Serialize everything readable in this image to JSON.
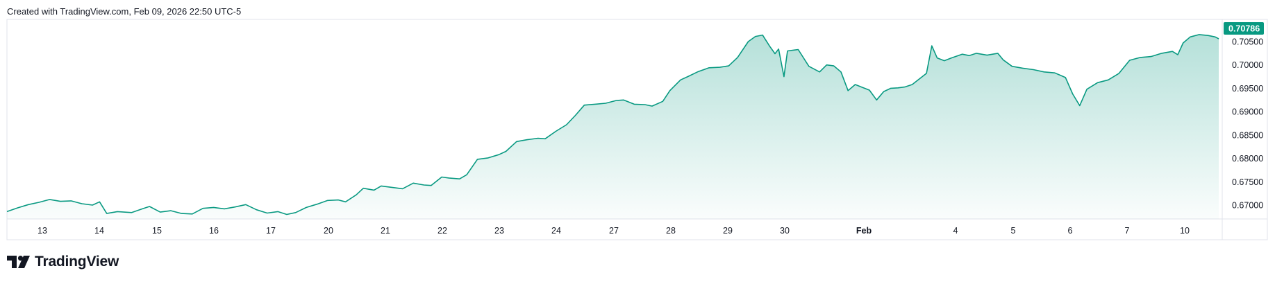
{
  "header": {
    "created_text": "Created with TradingView.com, Feb 09, 2026 22:50 UTC-5"
  },
  "branding": {
    "logo_text": "TradingView",
    "logo_icon": "tradingview-logo-icon"
  },
  "colors": {
    "line": "#089981",
    "area_top": "#089981",
    "price_tag_bg": "#089981",
    "grid_border": "#e0e3eb",
    "text": "#131722"
  },
  "chart_data": {
    "type": "area",
    "title": "",
    "xlabel": "",
    "ylabel": "",
    "ylim": [
      0.6655,
      0.71
    ],
    "last_price": "0.70786",
    "y_ticks": [
      "0.70500",
      "0.70000",
      "0.69500",
      "0.69000",
      "0.68500",
      "0.68000",
      "0.67500",
      "0.67000"
    ],
    "x_ticks": [
      {
        "label": "13",
        "bold": false
      },
      {
        "label": "14",
        "bold": false
      },
      {
        "label": "15",
        "bold": false
      },
      {
        "label": "16",
        "bold": false
      },
      {
        "label": "17",
        "bold": false
      },
      {
        "label": "20",
        "bold": false
      },
      {
        "label": "21",
        "bold": false
      },
      {
        "label": "22",
        "bold": false
      },
      {
        "label": "23",
        "bold": false
      },
      {
        "label": "24",
        "bold": false
      },
      {
        "label": "27",
        "bold": false
      },
      {
        "label": "28",
        "bold": false
      },
      {
        "label": "29",
        "bold": false
      },
      {
        "label": "30",
        "bold": false
      },
      {
        "label": "Feb",
        "bold": true
      },
      {
        "label": "4",
        "bold": false
      },
      {
        "label": "5",
        "bold": false
      },
      {
        "label": "6",
        "bold": false
      },
      {
        "label": "7",
        "bold": false
      },
      {
        "label": "10",
        "bold": false
      }
    ],
    "series": [
      {
        "points": [
          [
            0.0,
            0.6686
          ],
          [
            0.3,
            0.6694
          ],
          [
            0.6,
            0.6701
          ],
          [
            0.9,
            0.6706
          ],
          [
            1.2,
            0.6712
          ],
          [
            1.5,
            0.6708
          ],
          [
            1.8,
            0.6709
          ],
          [
            2.1,
            0.6703
          ],
          [
            2.4,
            0.67
          ],
          [
            2.6,
            0.6707
          ],
          [
            2.8,
            0.6682
          ],
          [
            3.1,
            0.6686
          ],
          [
            3.5,
            0.6684
          ],
          [
            3.8,
            0.6692
          ],
          [
            4.0,
            0.6697
          ],
          [
            4.3,
            0.6685
          ],
          [
            4.6,
            0.6688
          ],
          [
            4.9,
            0.6682
          ],
          [
            5.2,
            0.6681
          ],
          [
            5.5,
            0.6693
          ],
          [
            5.8,
            0.6695
          ],
          [
            6.1,
            0.6692
          ],
          [
            6.4,
            0.6696
          ],
          [
            6.7,
            0.6701
          ],
          [
            7.0,
            0.669
          ],
          [
            7.3,
            0.6683
          ],
          [
            7.6,
            0.6686
          ],
          [
            7.85,
            0.668
          ],
          [
            8.1,
            0.6684
          ],
          [
            8.4,
            0.6695
          ],
          [
            8.7,
            0.6702
          ],
          [
            9.0,
            0.671
          ],
          [
            9.3,
            0.6711
          ],
          [
            9.5,
            0.6707
          ],
          [
            9.8,
            0.6722
          ],
          [
            10.0,
            0.6736
          ],
          [
            10.3,
            0.6732
          ],
          [
            10.5,
            0.6741
          ],
          [
            10.8,
            0.6738
          ],
          [
            11.1,
            0.6735
          ],
          [
            11.4,
            0.6747
          ],
          [
            11.7,
            0.6743
          ],
          [
            11.9,
            0.6742
          ],
          [
            12.2,
            0.676
          ],
          [
            12.4,
            0.6758
          ],
          [
            12.7,
            0.6756
          ],
          [
            12.9,
            0.6765
          ],
          [
            13.2,
            0.6798
          ],
          [
            13.5,
            0.6801
          ],
          [
            13.8,
            0.6808
          ],
          [
            14.0,
            0.6815
          ],
          [
            14.3,
            0.6836
          ],
          [
            14.6,
            0.684
          ],
          [
            14.9,
            0.6843
          ],
          [
            15.1,
            0.6842
          ],
          [
            15.4,
            0.6858
          ],
          [
            15.7,
            0.6872
          ],
          [
            15.95,
            0.6892
          ],
          [
            16.2,
            0.6914
          ],
          [
            16.5,
            0.6916
          ],
          [
            16.8,
            0.6918
          ],
          [
            17.1,
            0.6924
          ],
          [
            17.3,
            0.6925
          ],
          [
            17.6,
            0.6916
          ],
          [
            17.9,
            0.6915
          ],
          [
            18.1,
            0.6912
          ],
          [
            18.4,
            0.6922
          ],
          [
            18.6,
            0.6945
          ],
          [
            18.9,
            0.6968
          ],
          [
            19.1,
            0.6975
          ],
          [
            19.4,
            0.6986
          ],
          [
            19.7,
            0.6994
          ],
          [
            20.0,
            0.6995
          ],
          [
            20.25,
            0.6998
          ],
          [
            20.5,
            0.7016
          ],
          [
            20.8,
            0.705
          ],
          [
            21.0,
            0.7061
          ],
          [
            21.2,
            0.7064
          ],
          [
            21.4,
            0.704
          ],
          [
            21.55,
            0.7024
          ],
          [
            21.65,
            0.7034
          ],
          [
            21.8,
            0.6975
          ],
          [
            21.9,
            0.703
          ],
          [
            22.2,
            0.7033
          ],
          [
            22.5,
            0.6997
          ],
          [
            22.8,
            0.6985
          ],
          [
            23.0,
            0.7
          ],
          [
            23.2,
            0.6998
          ],
          [
            23.4,
            0.6985
          ],
          [
            23.6,
            0.6945
          ],
          [
            23.8,
            0.6958
          ],
          [
            24.0,
            0.6952
          ],
          [
            24.2,
            0.6946
          ],
          [
            24.4,
            0.6925
          ],
          [
            24.6,
            0.6943
          ],
          [
            24.8,
            0.695
          ],
          [
            25.0,
            0.6951
          ],
          [
            25.2,
            0.6953
          ],
          [
            25.4,
            0.6958
          ],
          [
            25.6,
            0.697
          ],
          [
            25.8,
            0.6982
          ],
          [
            25.95,
            0.7041
          ],
          [
            26.1,
            0.7015
          ],
          [
            26.3,
            0.7009
          ],
          [
            26.5,
            0.7015
          ],
          [
            26.8,
            0.7023
          ],
          [
            27.0,
            0.702
          ],
          [
            27.2,
            0.7025
          ],
          [
            27.5,
            0.7021
          ],
          [
            27.8,
            0.7025
          ],
          [
            27.95,
            0.7011
          ],
          [
            28.2,
            0.6997
          ],
          [
            28.5,
            0.6993
          ],
          [
            28.8,
            0.699
          ],
          [
            29.1,
            0.6985
          ],
          [
            29.4,
            0.6983
          ],
          [
            29.7,
            0.6973
          ],
          [
            29.9,
            0.6938
          ],
          [
            30.1,
            0.6913
          ],
          [
            30.3,
            0.6948
          ],
          [
            30.6,
            0.6962
          ],
          [
            30.9,
            0.6968
          ],
          [
            31.2,
            0.6982
          ],
          [
            31.5,
            0.701
          ],
          [
            31.8,
            0.7016
          ],
          [
            32.1,
            0.7018
          ],
          [
            32.4,
            0.7025
          ],
          [
            32.7,
            0.7029
          ],
          [
            32.85,
            0.7022
          ],
          [
            33.0,
            0.7047
          ],
          [
            33.2,
            0.706
          ],
          [
            33.45,
            0.7065
          ],
          [
            33.7,
            0.7063
          ],
          [
            33.9,
            0.706
          ],
          [
            34.0,
            0.7056
          ]
        ]
      }
    ],
    "grid": false
  }
}
